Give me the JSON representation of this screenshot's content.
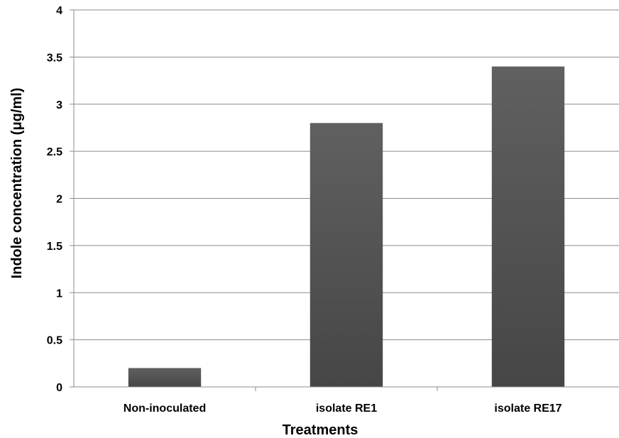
{
  "chart_data": {
    "type": "bar",
    "categories": [
      "Non-inoculated",
      "isolate RE1",
      "isolate RE17"
    ],
    "values": [
      0.2,
      2.8,
      3.4
    ],
    "xlabel": "Treatments",
    "ylabel": "Indole concentration (μg/ml)",
    "ylim": [
      0,
      4
    ],
    "yticks": [
      "0",
      "0.5",
      "1",
      "1.5",
      "2",
      "2.5",
      "3",
      "3.5",
      "4"
    ],
    "grid": true,
    "legend": "none",
    "bar_color": "#555555"
  }
}
